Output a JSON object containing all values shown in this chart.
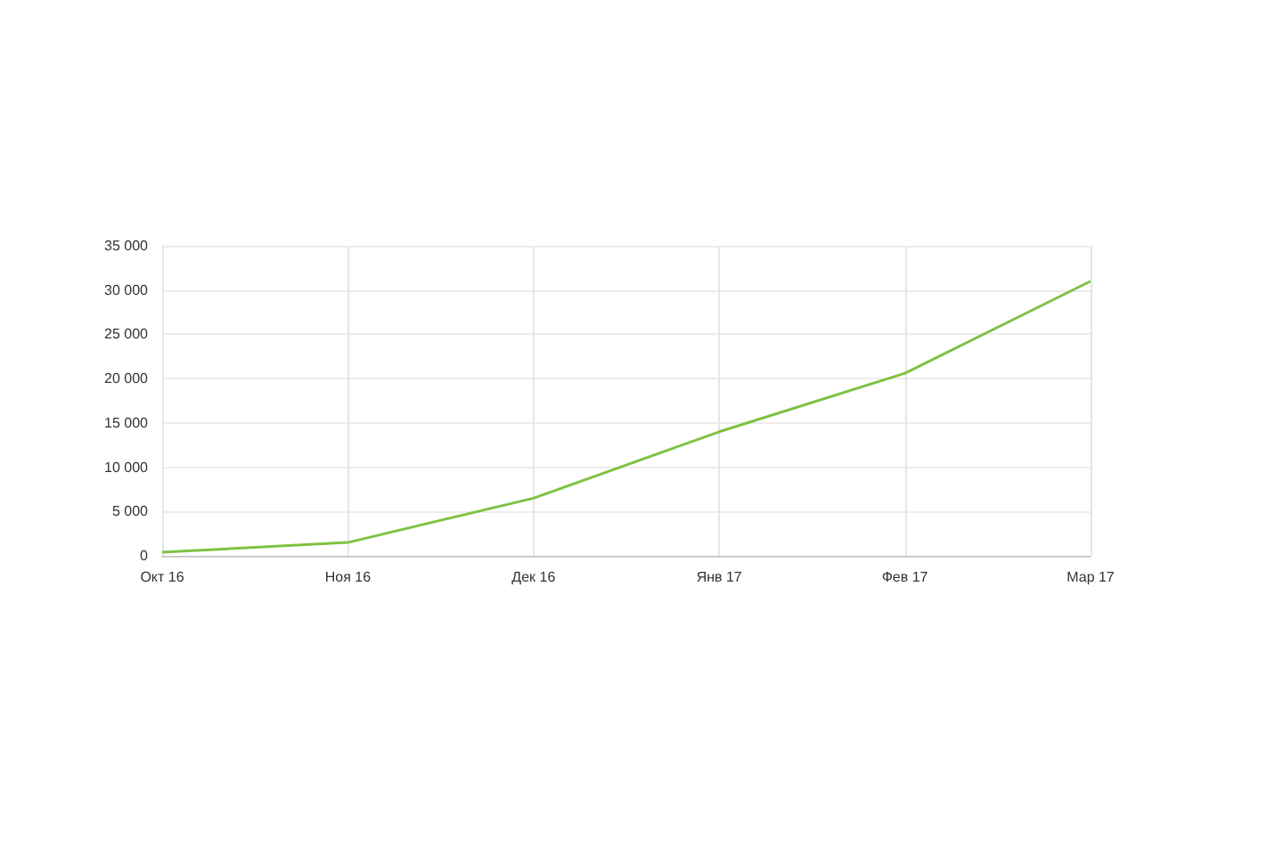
{
  "chart_data": {
    "type": "line",
    "categories": [
      "Окт 16",
      "Ноя 16",
      "Дек 16",
      "Янв 17",
      "Фев 17",
      "Мар 17"
    ],
    "series": [
      {
        "color": "#7dc242",
        "values": [
          400,
          1500,
          6500,
          14000,
          20600,
          31000
        ]
      }
    ],
    "ylim": [
      0,
      35000
    ],
    "yticks": [
      {
        "value": 0,
        "label": "0"
      },
      {
        "value": 5000,
        "label": "5 000"
      },
      {
        "value": 10000,
        "label": "10 000"
      },
      {
        "value": 15000,
        "label": "15 000"
      },
      {
        "value": 20000,
        "label": "20 000"
      },
      {
        "value": 25000,
        "label": "25 000"
      },
      {
        "value": 30000,
        "label": "30 000"
      },
      {
        "value": 35000,
        "label": "35 000"
      }
    ],
    "grid": true,
    "marker": "none"
  }
}
